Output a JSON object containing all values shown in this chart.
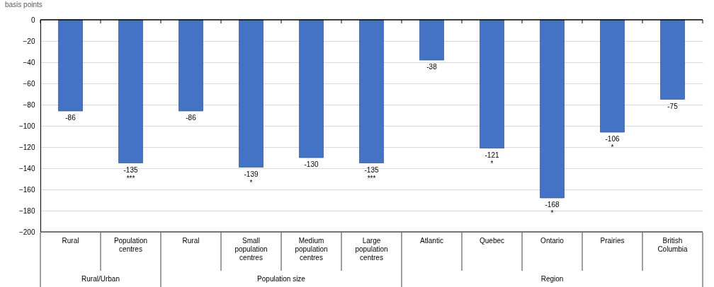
{
  "chart_data": {
    "type": "bar",
    "ylabel": "basis points",
    "categories": [
      "Rural",
      "Population centres",
      "Rural",
      "Small population centres",
      "Medium population centres",
      "Large population centres",
      "Atlantic",
      "Quebec",
      "Ontario",
      "Prairies",
      "British Columbia"
    ],
    "values": [
      -86,
      -135,
      -86,
      -139,
      -130,
      -135,
      -38,
      -121,
      -168,
      -106,
      -75
    ],
    "color": "#4472c4",
    "ylim": [
      -200,
      0
    ],
    "yticks": [
      -200,
      -180,
      -160,
      -140,
      -120,
      -100,
      -80,
      -60,
      -40,
      -20,
      0
    ],
    "grid": "y",
    "data_labels": true,
    "annotations": [
      "Rural/Urban",
      "Population size",
      "Region",
      {
        "text": "***",
        "x": "Population centres",
        "y": -135
      },
      {
        "text": "*",
        "x": "Small population centres",
        "y": -139
      },
      {
        "text": "***",
        "x": "Large population centres",
        "y": -135
      },
      {
        "text": "*",
        "x": "Quebec",
        "y": -121
      },
      {
        "text": "*",
        "x": "Ontario",
        "y": -168
      },
      {
        "text": "*",
        "x": "Prairies",
        "y": -106
      }
    ]
  }
}
